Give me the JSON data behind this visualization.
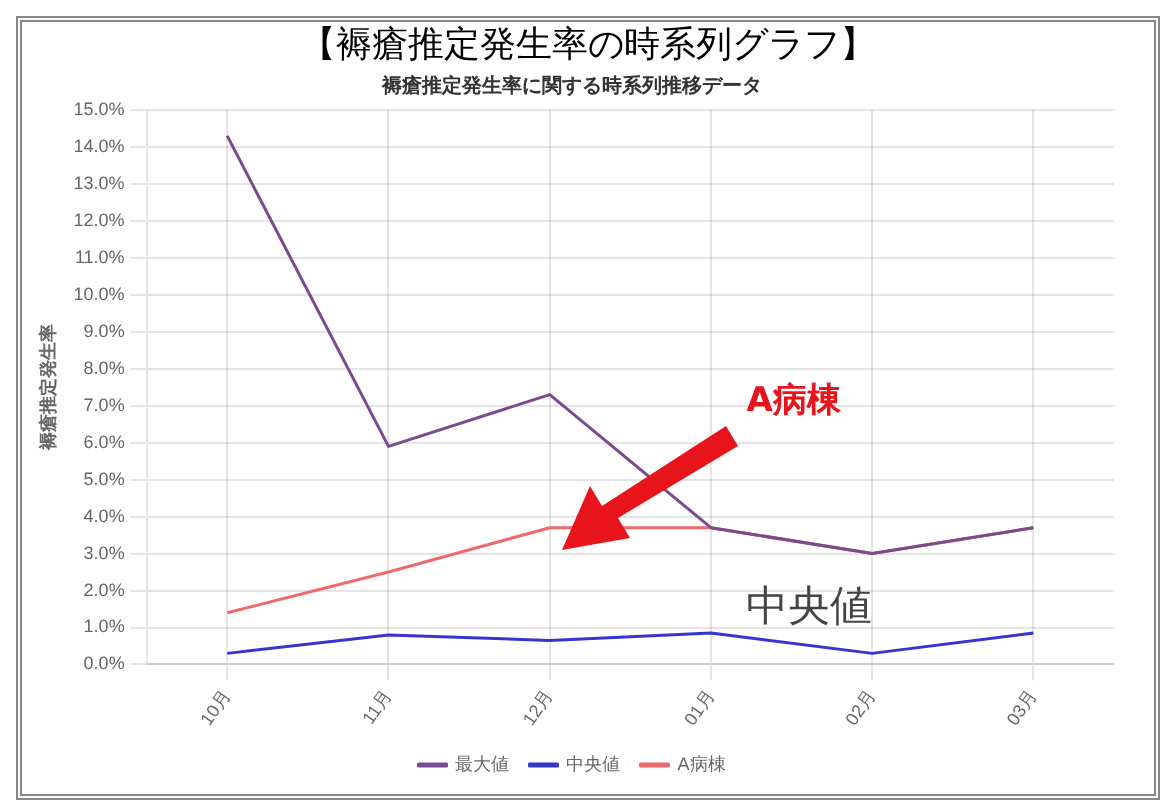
{
  "chart_data": {
    "type": "line",
    "title": "【褥瘡推定発生率の時系列グラフ】",
    "subtitle": "褥瘡推定発生率に関する時系列推移データ",
    "ylabel": "褥瘡推定発生率",
    "categories": [
      "10月",
      "11月",
      "12月",
      "01月",
      "02月",
      "03月"
    ],
    "series": [
      {
        "name": "A病棟",
        "color": "#f06a6a",
        "values": [
          1.4,
          2.5,
          3.7,
          3.7,
          3.0,
          3.7
        ]
      },
      {
        "name": "中央値",
        "color": "#3535d0",
        "values": [
          0.3,
          0.8,
          0.65,
          0.85,
          0.3,
          0.85
        ]
      },
      {
        "name": "最大値",
        "color": "#7a4a8e",
        "values": [
          14.3,
          5.9,
          7.3,
          3.7,
          3.0,
          3.7
        ]
      }
    ],
    "ylim": [
      0,
      15
    ],
    "yticks": [
      {
        "value": 0,
        "label": "0.0%"
      },
      {
        "value": 1,
        "label": "1.0%"
      },
      {
        "value": 2,
        "label": "2.0%"
      },
      {
        "value": 3,
        "label": "3.0%"
      },
      {
        "value": 4,
        "label": "4.0%"
      },
      {
        "value": 5,
        "label": "5.0%"
      },
      {
        "value": 6,
        "label": "6.0%"
      },
      {
        "value": 7,
        "label": "7.0%"
      },
      {
        "value": 8,
        "label": "8.0%"
      },
      {
        "value": 9,
        "label": "9.0%"
      },
      {
        "value": 10,
        "label": "10.0%"
      },
      {
        "value": 11,
        "label": "11.0%"
      },
      {
        "value": 12,
        "label": "12.0%"
      },
      {
        "value": 13,
        "label": "13.0%"
      },
      {
        "value": 14,
        "label": "14.0%"
      },
      {
        "value": 15,
        "label": "15.0%"
      }
    ],
    "annotations": [
      "A病棟",
      "中央値"
    ],
    "grid": true,
    "legend": "bottom",
    "marker": "none",
    "line_style": "solid"
  }
}
